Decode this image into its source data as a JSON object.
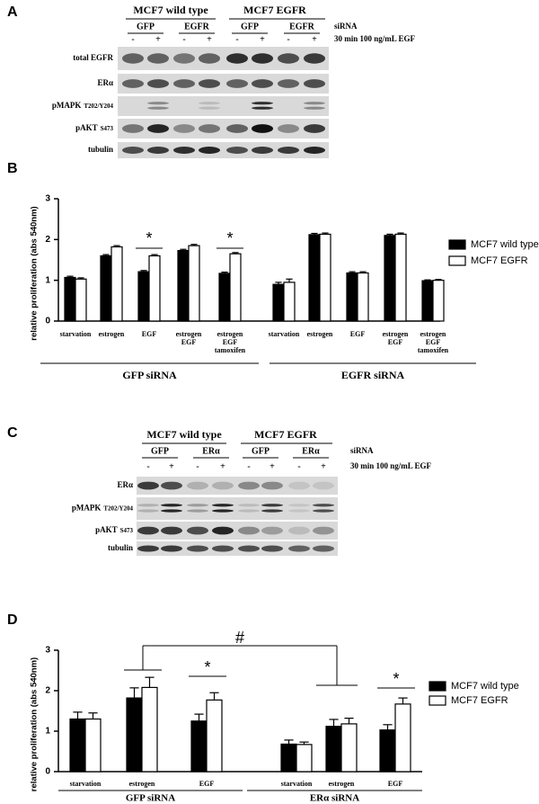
{
  "blots": [
    {
      "letter": "A",
      "cell_lines": [
        "MCF7 wild type",
        "MCF7 EGFR"
      ],
      "sirna_label": "siRNA",
      "treatment_label": "30 min 100 ng/mL EGF",
      "sirnas": [
        "GFP",
        "EGFR",
        "GFP",
        "EGFR"
      ],
      "lanes": [
        "-",
        "+",
        "-",
        "+",
        "-",
        "+",
        "-",
        "+"
      ],
      "rows": [
        {
          "label": "total EGFR"
        },
        {
          "label": "ERα"
        },
        {
          "label": "pMAPK",
          "sub": "T202/Y204"
        },
        {
          "label": "pAKT",
          "sub": "S473"
        },
        {
          "label": "tubulin"
        }
      ]
    },
    {
      "letter": "C",
      "cell_lines": [
        "MCF7 wild type",
        "MCF7 EGFR"
      ],
      "sirna_label": "siRNA",
      "treatment_label": "30 min 100 ng/mL EGF",
      "sirnas": [
        "GFP",
        "ERα",
        "GFP",
        "ERα"
      ],
      "lanes": [
        "-",
        "+",
        "-",
        "+",
        "-",
        "+",
        "-",
        "+"
      ],
      "rows": [
        {
          "label": "ERα"
        },
        {
          "label": "pMAPK",
          "sub": "T202/Y204"
        },
        {
          "label": "pAKT",
          "sub": "S473"
        },
        {
          "label": "tubulin"
        }
      ]
    }
  ],
  "chart_data": [
    {
      "letter": "B",
      "type": "bar",
      "ylabel": "relative proliferation (abs 540nm)",
      "ylim": [
        0,
        3
      ],
      "yticks": [
        0,
        1,
        2,
        3
      ],
      "edgecolor": "#000000",
      "categories": [
        [
          "starvation"
        ],
        [
          "estrogen"
        ],
        [
          "EGF"
        ],
        [
          "estrogen",
          "EGF"
        ],
        [
          "estrogen",
          "EGF",
          "tamoxifen"
        ],
        [
          "starvation"
        ],
        [
          "estrogen"
        ],
        [
          "EGF"
        ],
        [
          "estrogen",
          "EGF"
        ],
        [
          "estrogen",
          "EGF",
          "tamoxifen"
        ]
      ],
      "groups": [
        "GFP siRNA",
        "EGFR siRNA"
      ],
      "series": [
        {
          "name": "MCF7 wild type",
          "color": "#000000",
          "values": [
            1.07,
            1.6,
            1.21,
            1.73,
            1.17,
            0.9,
            2.12,
            1.18,
            2.1,
            0.99
          ],
          "errors": [
            0.03,
            0.03,
            0.03,
            0.03,
            0.03,
            0.05,
            0.03,
            0.03,
            0.03,
            0.02
          ]
        },
        {
          "name": "MCF7 EGFR",
          "color": "#ffffff",
          "values": [
            1.03,
            1.82,
            1.6,
            1.85,
            1.65,
            0.95,
            2.13,
            1.18,
            2.13,
            1.0
          ],
          "errors": [
            0.03,
            0.03,
            0.03,
            0.03,
            0.03,
            0.08,
            0.03,
            0.03,
            0.03,
            0.02
          ]
        }
      ],
      "annotations": [
        "*",
        "*"
      ]
    },
    {
      "letter": "D",
      "type": "bar",
      "ylabel": "relative proliferation (abs 540nm)",
      "ylim": [
        0,
        3
      ],
      "yticks": [
        0,
        1,
        2,
        3
      ],
      "edgecolor": "#000000",
      "categories": [
        [
          "starvation"
        ],
        [
          "estrogen"
        ],
        [
          "EGF"
        ],
        [
          "starvation"
        ],
        [
          "estrogen"
        ],
        [
          "EGF"
        ]
      ],
      "groups": [
        "GFP siRNA",
        "ERα siRNA"
      ],
      "series": [
        {
          "name": "MCF7 wild type",
          "color": "#000000",
          "values": [
            1.3,
            1.82,
            1.25,
            0.68,
            1.12,
            1.03
          ],
          "errors": [
            0.17,
            0.25,
            0.17,
            0.1,
            0.17,
            0.13
          ]
        },
        {
          "name": "MCF7 EGFR",
          "color": "#ffffff",
          "values": [
            1.3,
            2.08,
            1.77,
            0.67,
            1.18,
            1.67
          ],
          "errors": [
            0.15,
            0.25,
            0.18,
            0.06,
            0.14,
            0.15
          ]
        }
      ],
      "annotations": [
        "#",
        "*",
        "*"
      ]
    }
  ]
}
